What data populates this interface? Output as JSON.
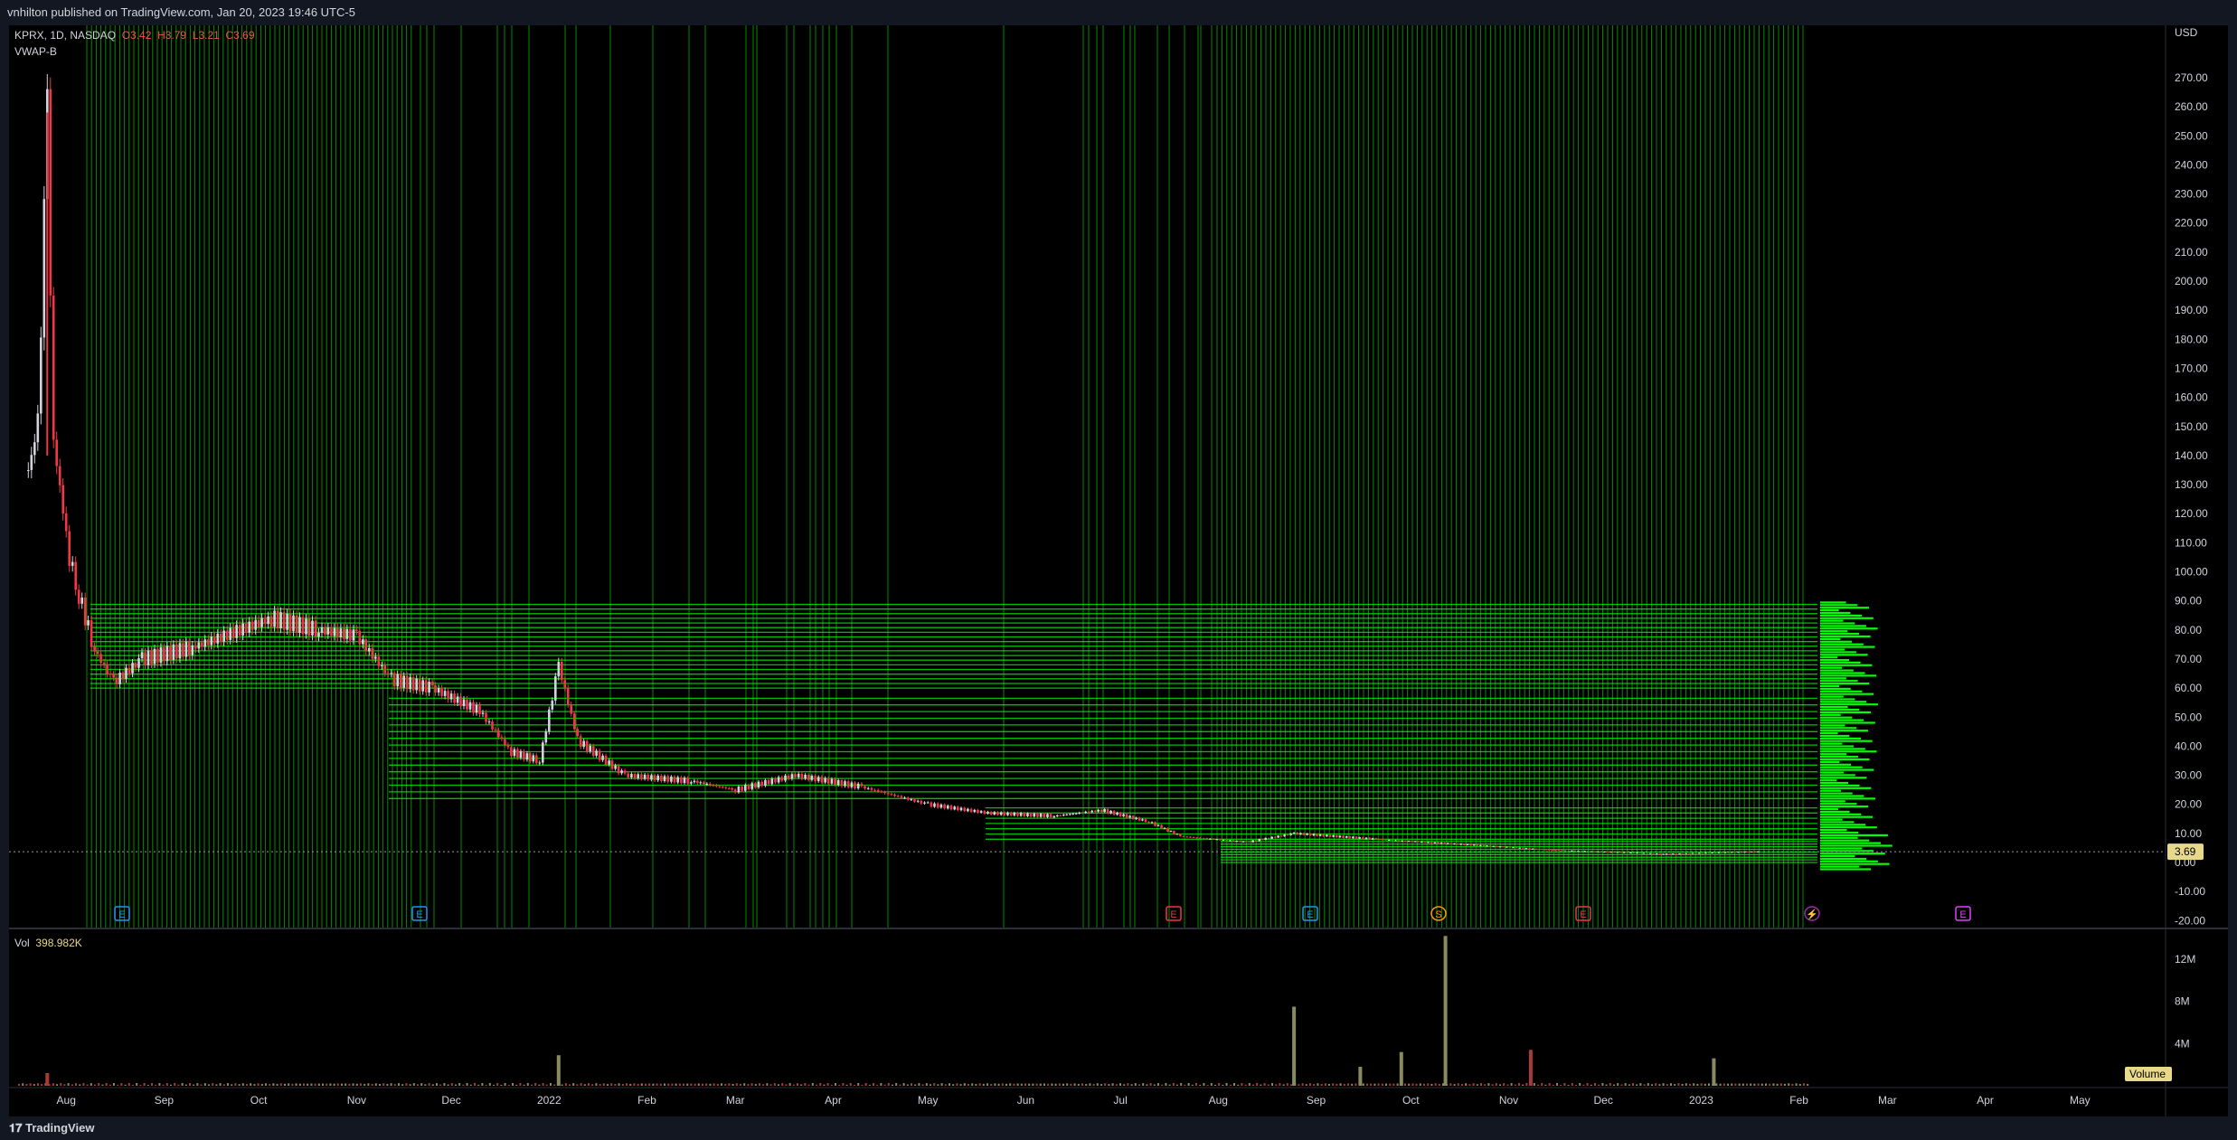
{
  "header": {
    "publisher": "vnhilton published on TradingView.com, Jan 20, 2023 19:46 UTC-5"
  },
  "legend": {
    "symbol": "KPRX, 1D, NASDAQ",
    "open": "O3.42",
    "high": "H3.79",
    "low": "L3.21",
    "close": "C3.69",
    "indicator": "VWAP-B"
  },
  "volume_legend": {
    "label": "Vol",
    "value": "398.982K"
  },
  "currency": "USD",
  "last_price_label": "3.69",
  "volume_tag": "Volume",
  "footer": {
    "brand": "TradingView"
  },
  "event_markers": [
    {
      "label": "E",
      "color": "#2196f3"
    },
    {
      "label": "E",
      "color": "#2196f3"
    },
    {
      "label": "E",
      "color": "#f23645"
    },
    {
      "label": "E",
      "color": "#2196f3"
    },
    {
      "label": "S",
      "color": "#ff9800"
    },
    {
      "label": "E",
      "color": "#f23645"
    },
    {
      "label": "⚡",
      "color": "#9c27b0"
    },
    {
      "label": "E",
      "color": "#e040fb"
    }
  ],
  "colors": {
    "up": "#d1d4dc",
    "down": "#f23645",
    "overlay": "#00ff00",
    "volume_up": "#8a8a60",
    "volume_down": "#a83a3a"
  },
  "chart_data": [
    {
      "type": "candlestick",
      "title": "KPRX, 1D, NASDAQ",
      "ylabel": "USD",
      "ylim": [
        -20,
        280
      ],
      "yticks": [
        -20,
        -10,
        0,
        10,
        20,
        30,
        40,
        50,
        60,
        70,
        80,
        90,
        100,
        110,
        120,
        130,
        140,
        150,
        160,
        170,
        180,
        190,
        200,
        210,
        220,
        230,
        240,
        250,
        260,
        270
      ],
      "ytick_labels": [
        "-20.00",
        "-10.00",
        "0.00",
        "10.00",
        "20.00",
        "30.00",
        "40.00",
        "50.00",
        "60.00",
        "70.00",
        "80.00",
        "90.00",
        "100.00",
        "110.00",
        "120.00",
        "130.00",
        "140.00",
        "150.00",
        "160.00",
        "170.00",
        "180.00",
        "190.00",
        "200.00",
        "210.00",
        "220.00",
        "230.00",
        "240.00",
        "250.00",
        "260.00",
        "270.00"
      ],
      "xtick_labels": [
        "Aug",
        "Sep",
        "Oct",
        "Nov",
        "Dec",
        "2022",
        "Feb",
        "Mar",
        "Apr",
        "May",
        "Jun",
        "Jul",
        "Aug",
        "Sep",
        "Oct",
        "Nov",
        "Dec",
        "2023",
        "Feb",
        "Mar",
        "Apr",
        "May"
      ],
      "series": [
        {
          "name": "KPRX",
          "approx_close_path": [
            [
              "2021-07-20",
              135
            ],
            [
              "2021-07-23",
              150
            ],
            [
              "2021-07-26",
              258
            ],
            [
              "2021-07-28",
              145
            ],
            [
              "2021-08-02",
              105
            ],
            [
              "2021-08-05",
              92
            ],
            [
              "2021-08-10",
              73
            ],
            [
              "2021-08-16",
              62
            ],
            [
              "2021-08-25",
              70
            ],
            [
              "2021-09-10",
              74
            ],
            [
              "2021-09-25",
              80
            ],
            [
              "2021-10-05",
              84
            ],
            [
              "2021-10-20",
              80
            ],
            [
              "2021-11-01",
              78
            ],
            [
              "2021-11-12",
              63
            ],
            [
              "2021-11-25",
              60
            ],
            [
              "2021-12-10",
              52
            ],
            [
              "2021-12-20",
              38
            ],
            [
              "2021-12-29",
              35
            ],
            [
              "2022-01-04",
              68
            ],
            [
              "2022-01-10",
              42
            ],
            [
              "2022-01-25",
              30
            ],
            [
              "2022-02-15",
              28
            ],
            [
              "2022-03-01",
              25
            ],
            [
              "2022-03-20",
              30
            ],
            [
              "2022-04-10",
              26
            ],
            [
              "2022-05-01",
              20
            ],
            [
              "2022-05-20",
              17
            ],
            [
              "2022-06-10",
              16
            ],
            [
              "2022-06-25",
              18
            ],
            [
              "2022-07-10",
              14
            ],
            [
              "2022-07-20",
              9
            ],
            [
              "2022-08-10",
              7
            ],
            [
              "2022-08-25",
              10
            ],
            [
              "2022-09-20",
              8
            ],
            [
              "2022-10-20",
              6
            ],
            [
              "2022-11-20",
              4
            ],
            [
              "2022-12-20",
              3
            ],
            [
              "2023-01-20",
              3.69
            ]
          ]
        }
      ],
      "last_price": 3.69
    },
    {
      "type": "bar",
      "title": "Vol",
      "ylabel": "Volume",
      "yticks": [
        4000000,
        8000000,
        12000000
      ],
      "ytick_labels": [
        "4M",
        "8M",
        "12M"
      ],
      "series": [
        {
          "name": "Volume",
          "approx_spikes": [
            [
              "2021-07-26",
              1200000
            ],
            [
              "2022-01-04",
              2900000
            ],
            [
              "2022-08-25",
              7500000
            ],
            [
              "2022-09-15",
              1800000
            ],
            [
              "2022-09-28",
              3200000
            ],
            [
              "2022-10-12",
              14200000
            ],
            [
              "2022-11-08",
              3400000
            ],
            [
              "2023-01-05",
              2600000
            ]
          ]
        }
      ]
    }
  ]
}
